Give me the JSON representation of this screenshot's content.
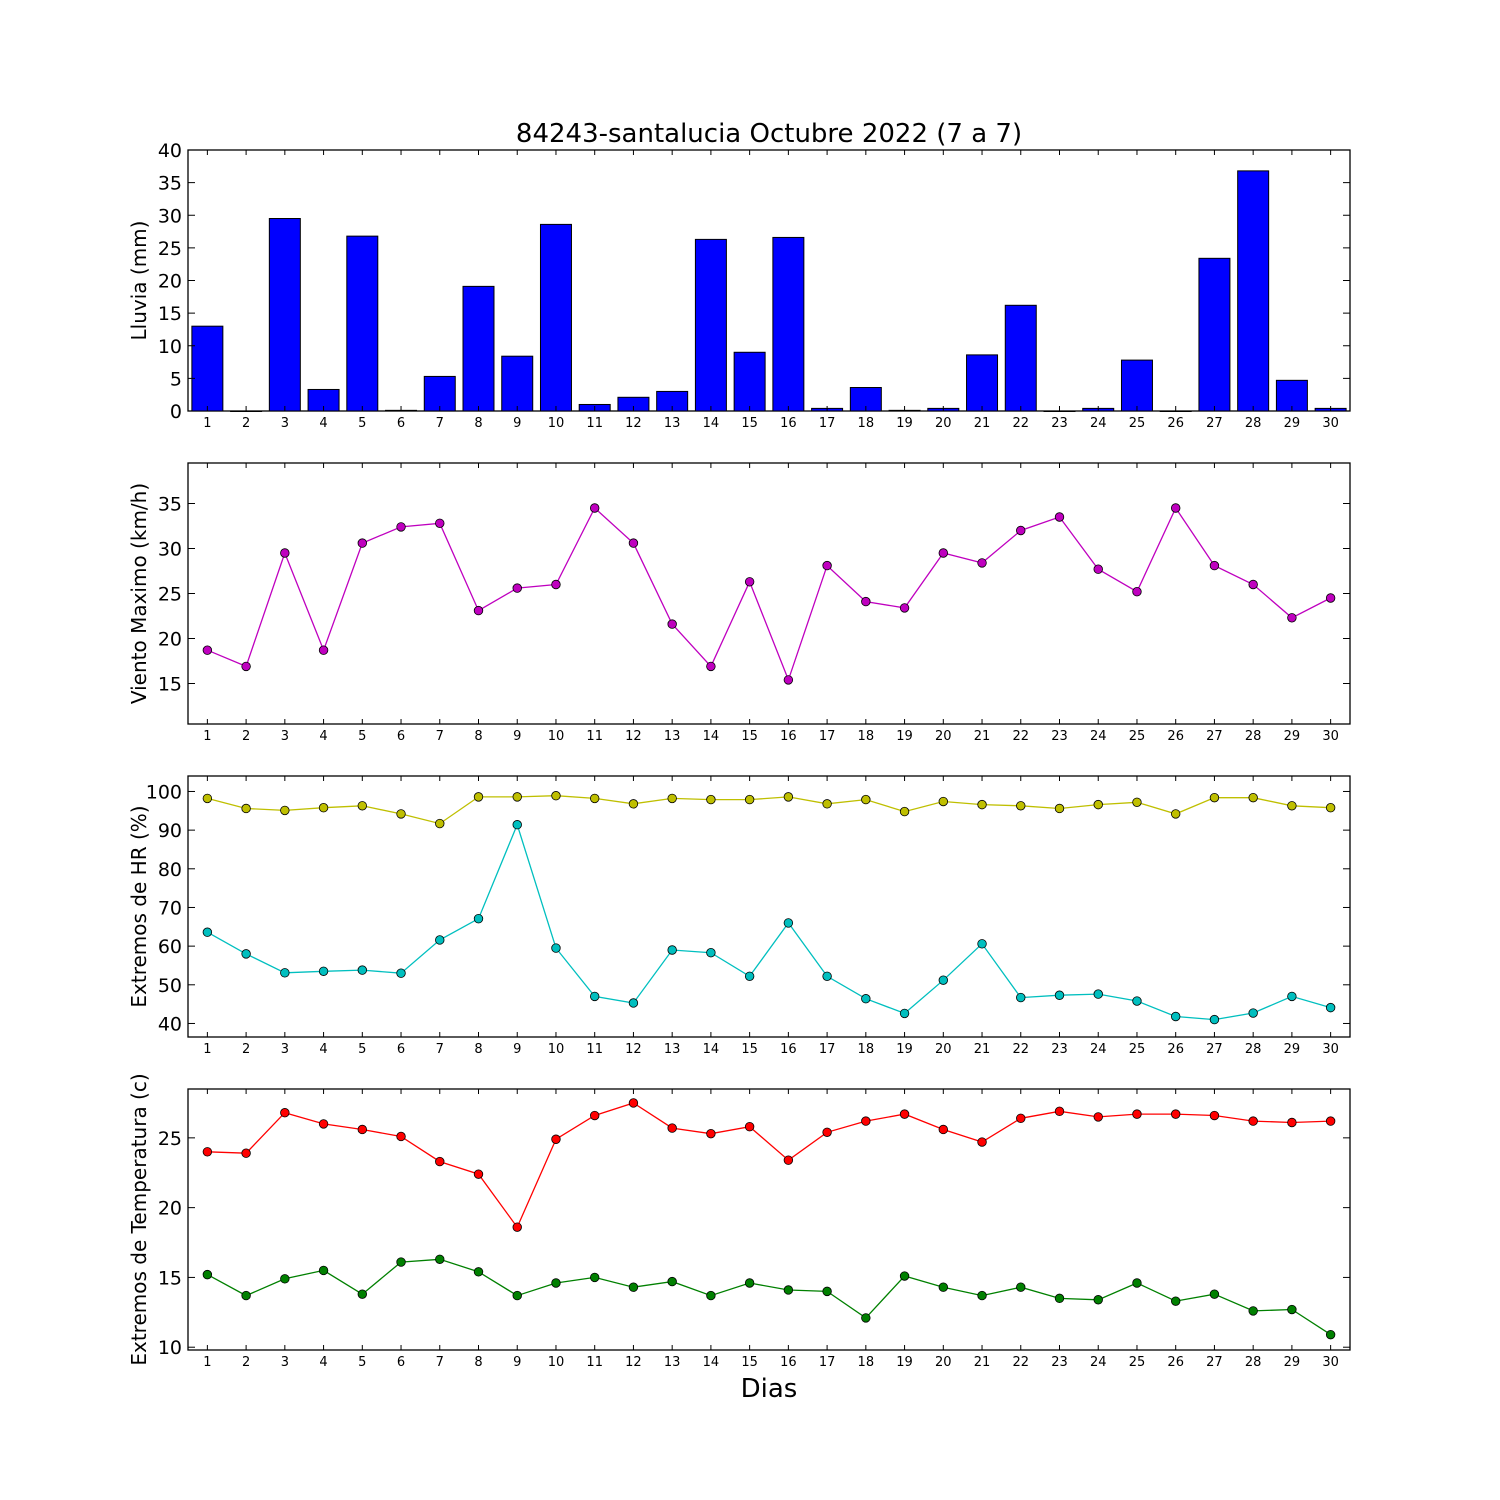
{
  "title": "84243-santalucia Octubre 2022  (7 a 7)",
  "xlabel": "Dias",
  "colors": {
    "bar": "#0000ff",
    "wind": "#bf00bf",
    "hr_max": "#bfbf00",
    "hr_min": "#00bfbf",
    "t_max": "#ff0000",
    "t_min": "#008000"
  },
  "chart_data": [
    {
      "type": "bar",
      "ylabel": "Lluvia (mm)",
      "xlim": [
        0.5,
        30.5
      ],
      "ylim": [
        0,
        40
      ],
      "yticks": [
        0,
        5,
        10,
        15,
        20,
        25,
        30,
        35,
        40
      ],
      "categories": [
        1,
        2,
        3,
        4,
        5,
        6,
        7,
        8,
        9,
        10,
        11,
        12,
        13,
        14,
        15,
        16,
        17,
        18,
        19,
        20,
        21,
        22,
        23,
        24,
        25,
        26,
        27,
        28,
        29,
        30
      ],
      "values": [
        13.0,
        0.0,
        29.5,
        3.3,
        26.8,
        0.1,
        5.3,
        19.1,
        8.4,
        28.6,
        1.0,
        2.1,
        3.0,
        26.3,
        9.0,
        26.6,
        0.4,
        3.6,
        0.1,
        0.4,
        8.6,
        16.2,
        0.0,
        0.4,
        7.8,
        0.0,
        23.4,
        36.8,
        4.7,
        0.4
      ],
      "grid": false
    },
    {
      "type": "line",
      "ylabel": "Viento Maximo (km/h)",
      "xlim": [
        0.5,
        30.5
      ],
      "ylim": [
        10.5,
        39.5
      ],
      "yticks": [
        15,
        20,
        25,
        30,
        35
      ],
      "x": [
        1,
        2,
        3,
        4,
        5,
        6,
        7,
        8,
        9,
        10,
        11,
        12,
        13,
        14,
        15,
        16,
        17,
        18,
        19,
        20,
        21,
        22,
        23,
        24,
        25,
        26,
        27,
        28,
        29,
        30
      ],
      "series": [
        {
          "values": [
            18.7,
            16.9,
            29.5,
            18.7,
            30.6,
            32.4,
            32.8,
            23.1,
            25.6,
            26.0,
            34.5,
            30.6,
            21.6,
            16.9,
            26.3,
            15.4,
            28.1,
            24.1,
            23.4,
            29.5,
            28.4,
            32.0,
            33.5,
            27.7,
            25.2,
            34.5,
            28.1,
            26.0,
            22.3,
            24.5
          ],
          "color_key": "wind"
        }
      ],
      "grid": false
    },
    {
      "type": "line",
      "ylabel": "Extremos de HR (%)",
      "xlim": [
        0.5,
        30.5
      ],
      "ylim": [
        36.5,
        104
      ],
      "yticks": [
        40,
        50,
        60,
        70,
        80,
        90,
        100
      ],
      "x": [
        1,
        2,
        3,
        4,
        5,
        6,
        7,
        8,
        9,
        10,
        11,
        12,
        13,
        14,
        15,
        16,
        17,
        18,
        19,
        20,
        21,
        22,
        23,
        24,
        25,
        26,
        27,
        28,
        29,
        30
      ],
      "series": [
        {
          "values": [
            98.2,
            95.6,
            95.1,
            95.8,
            96.3,
            94.2,
            91.7,
            98.6,
            98.6,
            98.9,
            98.2,
            96.8,
            98.2,
            97.9,
            97.9,
            98.6,
            96.8,
            97.9,
            94.8,
            97.4,
            96.6,
            96.3,
            95.6,
            96.6,
            97.2,
            94.2,
            98.4,
            98.4,
            96.3,
            95.8
          ],
          "color_key": "hr_max"
        },
        {
          "values": [
            63.6,
            58.0,
            53.1,
            53.5,
            53.8,
            53.0,
            61.6,
            67.1,
            91.4,
            59.5,
            47.0,
            45.3,
            59.0,
            58.3,
            52.2,
            66.0,
            52.2,
            46.4,
            42.6,
            51.2,
            60.6,
            46.7,
            47.3,
            47.6,
            45.8,
            41.8,
            41.0,
            42.7,
            47.0,
            44.1
          ],
          "color_key": "hr_min"
        }
      ],
      "grid": false
    },
    {
      "type": "line",
      "ylabel": "Extremos de Temperatura (c)",
      "xlim": [
        0.5,
        30.5
      ],
      "ylim": [
        9.8,
        28.5
      ],
      "yticks": [
        10,
        15,
        20,
        25
      ],
      "x": [
        1,
        2,
        3,
        4,
        5,
        6,
        7,
        8,
        9,
        10,
        11,
        12,
        13,
        14,
        15,
        16,
        17,
        18,
        19,
        20,
        21,
        22,
        23,
        24,
        25,
        26,
        27,
        28,
        29,
        30
      ],
      "series": [
        {
          "values": [
            24.0,
            23.9,
            26.8,
            26.0,
            25.6,
            25.1,
            23.3,
            22.4,
            18.6,
            24.9,
            26.6,
            27.5,
            25.7,
            25.3,
            25.8,
            23.4,
            25.4,
            26.2,
            26.7,
            25.6,
            24.7,
            26.4,
            26.9,
            26.5,
            26.7,
            26.7,
            26.6,
            26.2,
            26.1,
            26.2
          ],
          "color_key": "t_max"
        },
        {
          "values": [
            15.2,
            13.7,
            14.9,
            15.5,
            13.8,
            16.1,
            16.3,
            15.4,
            13.7,
            14.6,
            15.0,
            14.3,
            14.7,
            13.7,
            14.6,
            14.1,
            14.0,
            12.1,
            15.1,
            14.3,
            13.7,
            14.3,
            13.5,
            13.4,
            14.6,
            13.3,
            13.8,
            12.6,
            12.7,
            10.9
          ],
          "color_key": "t_min"
        }
      ],
      "grid": false
    }
  ]
}
